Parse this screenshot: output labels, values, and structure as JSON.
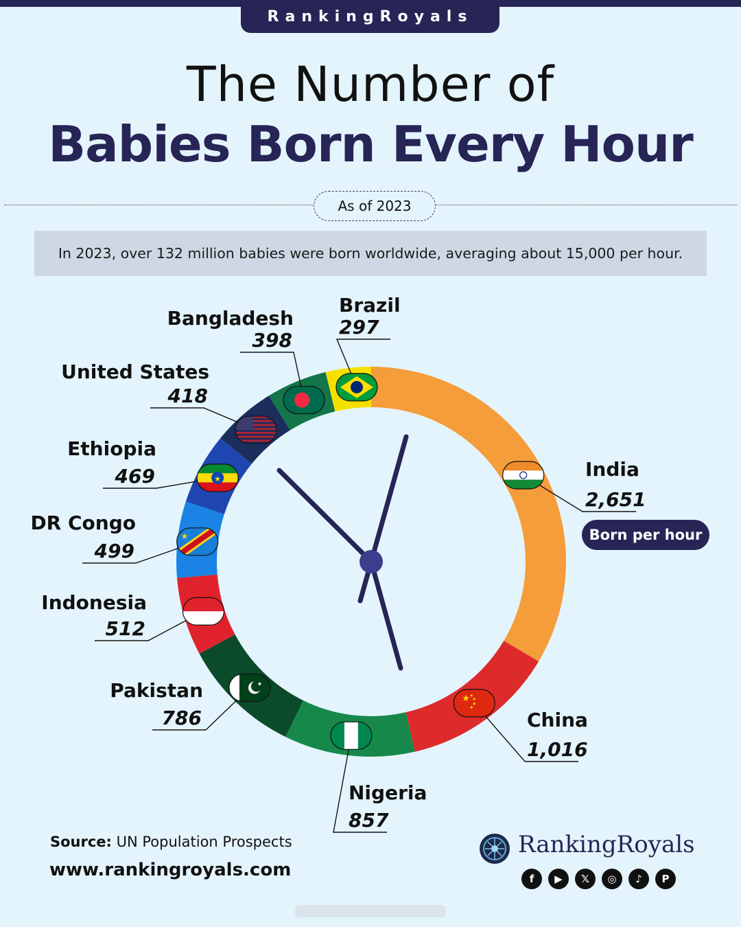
{
  "header": {
    "brand_tab": "RankingRoyals",
    "title_line1": "The Number of",
    "title_line2": "Babies Born Every Hour",
    "date_label": "As of 2023",
    "summary": "In 2023, over 132 million babies were born worldwide, averaging about 15,000 per hour."
  },
  "badge": {
    "label": "Born per hour"
  },
  "footer": {
    "source_label": "Source:",
    "source_text": "UN Population Prospects",
    "website": "www.rankingroyals.com",
    "brand": "RankingRoyals",
    "social_icons": [
      "facebook-icon",
      "youtube-icon",
      "x-icon",
      "instagram-icon",
      "tiktok-icon",
      "pinterest-icon"
    ]
  },
  "chart_data": {
    "type": "pie",
    "subtype": "donut-clock",
    "title": "The Number of Babies Born Every Hour",
    "unit": "Born per hour",
    "categories": [
      "India",
      "China",
      "Nigeria",
      "Pakistan",
      "Indonesia",
      "DR Congo",
      "Ethiopia",
      "United States",
      "Bangladesh",
      "Brazil"
    ],
    "values": [
      2651,
      1016,
      857,
      786,
      512,
      499,
      469,
      418,
      398,
      297
    ],
    "labels": [
      "2,651",
      "1,016",
      "857",
      "786",
      "512",
      "499",
      "469",
      "418",
      "398",
      "297"
    ],
    "colors": [
      "#f59c3b",
      "#dd2b2b",
      "#16894a",
      "#0b4a2a",
      "#e0222c",
      "#1a83e5",
      "#1f45b0",
      "#1b2e5c",
      "#137548",
      "#f5e000"
    ],
    "start_direction": "12 o'clock",
    "direction": "clockwise"
  }
}
